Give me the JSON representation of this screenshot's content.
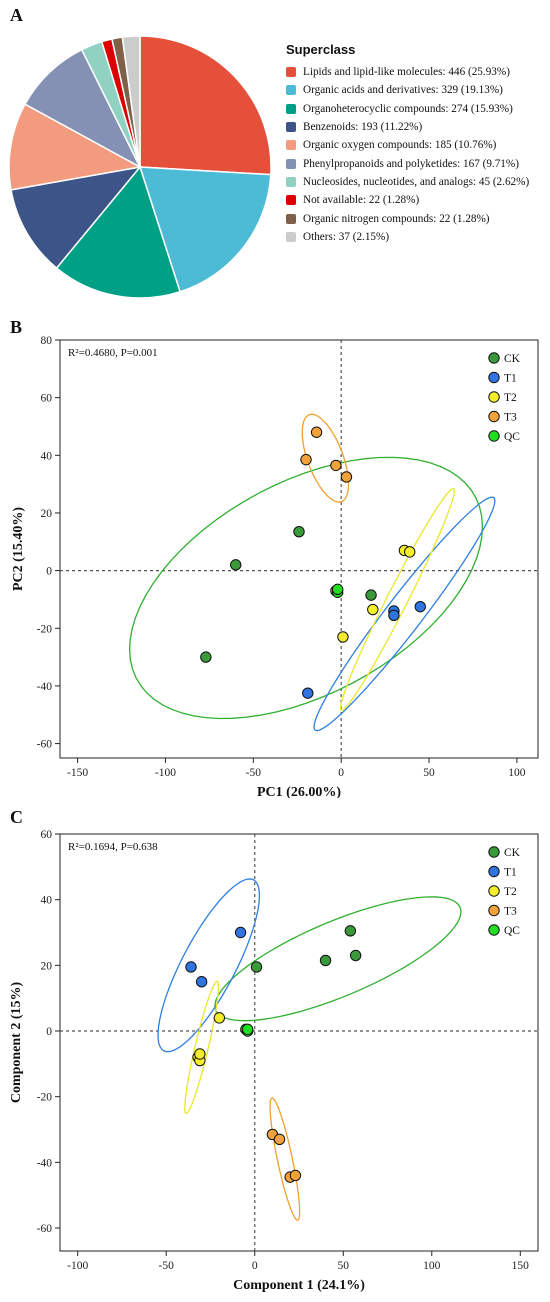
{
  "panel_labels": [
    "A",
    "B",
    "C"
  ],
  "colors": {
    "CK": "#3a9a3a",
    "T1": "#2f74e0",
    "T2": "#f4ee2a",
    "T3": "#f2a23a",
    "QC": "#22dd22",
    "ellipse_CK": "#2fb02f",
    "ellipse_T1": "#2f7fe0",
    "ellipse_T2": "#e8e82a",
    "ellipse_T3": "#f0a030"
  },
  "chart_data": [
    {
      "type": "pie",
      "legend_title": "Superclass",
      "slices": [
        {
          "label": "Lipids and lipid-like molecules: 446 (25.93%)",
          "value": 25.93,
          "color": "#e4503a"
        },
        {
          "label": "Organic acids and derivatives: 329 (19.13%)",
          "value": 19.13,
          "color": "#4dbbd5"
        },
        {
          "label": "Organoheterocyclic compounds: 274 (15.93%)",
          "value": 15.93,
          "color": "#00a087"
        },
        {
          "label": "Benzenoids: 193 (11.22%)",
          "value": 11.22,
          "color": "#3c5488"
        },
        {
          "label": "Organic oxygen compounds: 185 (10.76%)",
          "value": 10.76,
          "color": "#f39b7f"
        },
        {
          "label": "Phenylpropanoids and polyketides: 167 (9.71%)",
          "value": 9.71,
          "color": "#8491b4"
        },
        {
          "label": "Nucleosides, nucleotides, and analogs: 45 (2.62%)",
          "value": 2.62,
          "color": "#91d1c2"
        },
        {
          "label": "Not available: 22 (1.28%)",
          "value": 1.28,
          "color": "#dc0000"
        },
        {
          "label": "Organic nitrogen compounds: 22 (1.28%)",
          "value": 1.28,
          "color": "#7e6148"
        },
        {
          "label": "Others: 37 (2.15%)",
          "value": 2.15,
          "color": "#cccccc"
        }
      ]
    },
    {
      "type": "scatter",
      "annotation": "R²=0.4680, P=0.001",
      "xlabel": "PC1 (26.00%)",
      "ylabel": "PC2 (15.40%)",
      "xlim": [
        -160,
        112
      ],
      "ylim": [
        -65,
        80
      ],
      "xticks": [
        -150,
        -100,
        -50,
        0,
        50,
        100
      ],
      "yticks": [
        -60,
        -40,
        -20,
        0,
        20,
        40,
        60,
        80
      ],
      "legend": [
        "CK",
        "T1",
        "T2",
        "T3",
        "QC"
      ],
      "series": [
        {
          "name": "CK",
          "points": [
            [
              -60,
              2
            ],
            [
              -24,
              13.5
            ],
            [
              -77,
              -30
            ],
            [
              17,
              -8.5
            ]
          ]
        },
        {
          "name": "T1",
          "points": [
            [
              -19,
              -42.5
            ],
            [
              30,
              -14
            ],
            [
              30,
              -15.5
            ],
            [
              45,
              -12.5
            ]
          ]
        },
        {
          "name": "T2",
          "points": [
            [
              1,
              -23
            ],
            [
              18,
              -13.5
            ],
            [
              36,
              7
            ],
            [
              39,
              6.5
            ]
          ]
        },
        {
          "name": "T3",
          "points": [
            [
              -14,
              48
            ],
            [
              -20,
              38.5
            ],
            [
              -3,
              36.5
            ],
            [
              3,
              32.5
            ]
          ]
        },
        {
          "name": "QC",
          "points": [
            [
              -3,
              -7
            ],
            [
              -2,
              -7.5
            ],
            [
              -2,
              -6.5
            ]
          ]
        }
      ],
      "ellipses": [
        {
          "name": "CK",
          "cx": -20,
          "cy": -6,
          "rx": 103,
          "ry": 39,
          "angle": 14
        },
        {
          "name": "T1",
          "cx": 36,
          "cy": -15,
          "rx": 65,
          "ry": 8,
          "angle": 38
        },
        {
          "name": "T2",
          "cx": 32,
          "cy": -10,
          "rx": 50,
          "ry": 5,
          "angle": 50
        },
        {
          "name": "T3",
          "cx": -9,
          "cy": 39,
          "rx": 18,
          "ry": 9,
          "angle": -52
        }
      ]
    },
    {
      "type": "scatter",
      "annotation": "R²=0.1694, P=0.638",
      "xlabel": "Component 1 (24.1%)",
      "ylabel": "Component 2 (15%)",
      "xlim": [
        -110,
        160
      ],
      "ylim": [
        -67,
        60
      ],
      "xticks": [
        -100,
        -50,
        0,
        50,
        100,
        150
      ],
      "yticks": [
        -60,
        -40,
        -20,
        0,
        20,
        40,
        60
      ],
      "legend": [
        "CK",
        "T1",
        "T2",
        "T3",
        "QC"
      ],
      "series": [
        {
          "name": "CK",
          "points": [
            [
              1,
              19.5
            ],
            [
              40,
              21.5
            ],
            [
              54,
              30.5
            ],
            [
              57,
              23
            ]
          ]
        },
        {
          "name": "T1",
          "points": [
            [
              -36,
              19.5
            ],
            [
              -30,
              15
            ],
            [
              -8,
              30
            ]
          ]
        },
        {
          "name": "T2",
          "points": [
            [
              -20,
              4
            ],
            [
              -32,
              -8
            ],
            [
              -31,
              -9
            ],
            [
              -31,
              -7
            ]
          ]
        },
        {
          "name": "T3",
          "points": [
            [
              10,
              -31.5
            ],
            [
              14,
              -33
            ],
            [
              20,
              -44.5
            ],
            [
              23,
              -44
            ]
          ]
        },
        {
          "name": "QC",
          "points": [
            [
              -5,
              0.5
            ],
            [
              -4,
              0
            ],
            [
              -4,
              0.5
            ]
          ]
        }
      ],
      "ellipses": [
        {
          "name": "CK",
          "cx": 47,
          "cy": 22,
          "rx": 71,
          "ry": 12,
          "angle": 12
        },
        {
          "name": "T1",
          "cx": -26,
          "cy": 20,
          "rx": 37,
          "ry": 12,
          "angle": 42
        },
        {
          "name": "T2",
          "cx": -30,
          "cy": -5,
          "rx": 22,
          "ry": 3.5,
          "angle": 66
        },
        {
          "name": "T3",
          "cx": 17,
          "cy": -39,
          "rx": 20,
          "ry": 4,
          "angle": -68
        }
      ]
    }
  ]
}
